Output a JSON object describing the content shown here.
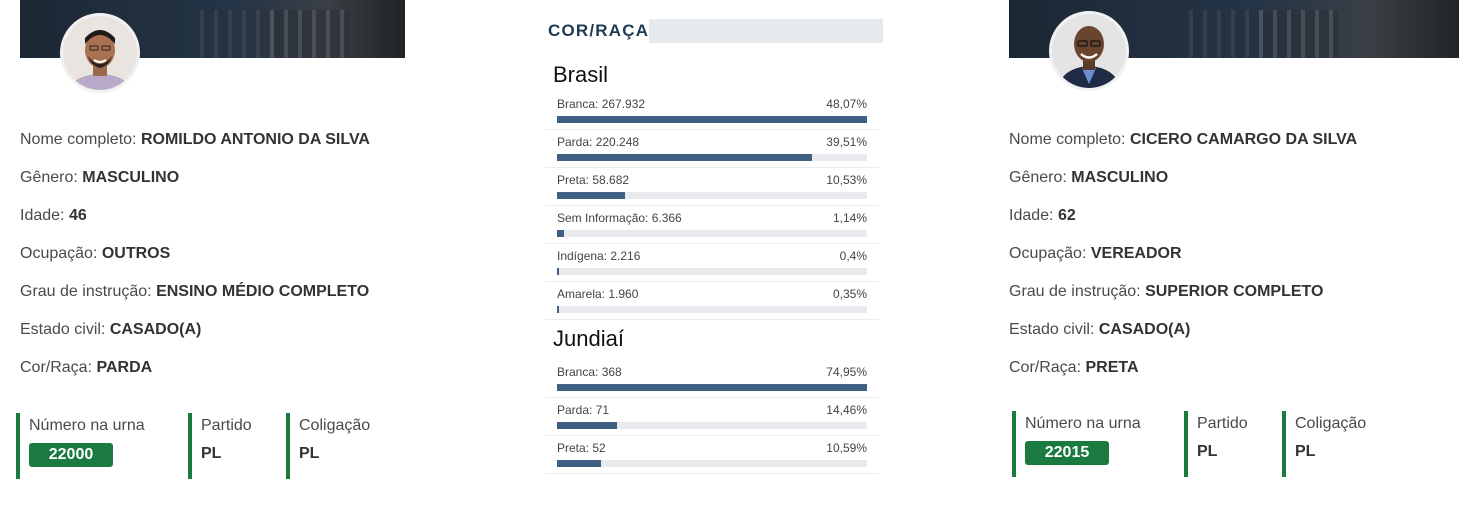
{
  "candidates": [
    {
      "fields": [
        {
          "label": "Nome completo:",
          "value": "ROMILDO ANTONIO DA SILVA"
        },
        {
          "label": "Gênero:",
          "value": "MASCULINO"
        },
        {
          "label": "Idade:",
          "value": "46"
        },
        {
          "label": "Ocupação:",
          "value": "OUTROS"
        },
        {
          "label": "Grau de instrução:",
          "value": "ENSINO MÉDIO COMPLETO"
        },
        {
          "label": "Estado civil:",
          "value": "CASADO(A)"
        },
        {
          "label": "Cor/Raça:",
          "value": "PARDA"
        }
      ],
      "numero_label": "Número na urna",
      "numero": "22000",
      "partido_label": "Partido",
      "partido": "PL",
      "coligacao_label": "Coligação",
      "coligacao": "PL"
    },
    {
      "fields": [
        {
          "label": "Nome completo:",
          "value": "CICERO CAMARGO DA SILVA"
        },
        {
          "label": "Gênero:",
          "value": "MASCULINO"
        },
        {
          "label": "Idade:",
          "value": "62"
        },
        {
          "label": "Ocupação:",
          "value": "VEREADOR"
        },
        {
          "label": "Grau de instrução:",
          "value": "SUPERIOR COMPLETO"
        },
        {
          "label": "Estado civil:",
          "value": "CASADO(A)"
        },
        {
          "label": "Cor/Raça:",
          "value": "PRETA"
        }
      ],
      "numero_label": "Número na urna",
      "numero": "22015",
      "partido_label": "Partido",
      "partido": "PL",
      "coligacao_label": "Coligação",
      "coligacao": "PL"
    }
  ],
  "section_title": "COR/RAÇA",
  "stats": {
    "brasil": {
      "title": "Brasil",
      "items": [
        {
          "label": "Branca: 267.932",
          "pct_text": "48,07%",
          "fraction": 1.0
        },
        {
          "label": "Parda: 220.248",
          "pct_text": "39,51%",
          "fraction": 0.822
        },
        {
          "label": "Preta: 58.682",
          "pct_text": "10,53%",
          "fraction": 0.219
        },
        {
          "label": "Sem Informação: 6.366",
          "pct_text": "1,14%",
          "fraction": 0.024
        },
        {
          "label": "Indígena: 2.216",
          "pct_text": "0,4%",
          "fraction": 0.008
        },
        {
          "label": "Amarela: 1.960",
          "pct_text": "0,35%",
          "fraction": 0.007
        }
      ]
    },
    "jundiai": {
      "title": "Jundiaí",
      "items": [
        {
          "label": "Branca: 368",
          "pct_text": "74,95%",
          "fraction": 1.0
        },
        {
          "label": "Parda: 71",
          "pct_text": "14,46%",
          "fraction": 0.193
        },
        {
          "label": "Preta: 52",
          "pct_text": "10,59%",
          "fraction": 0.141
        }
      ]
    }
  },
  "colors": {
    "accent_green": "#1b7a3f",
    "bar_fill": "#3f5f83",
    "bar_track": "#e8eaed"
  }
}
